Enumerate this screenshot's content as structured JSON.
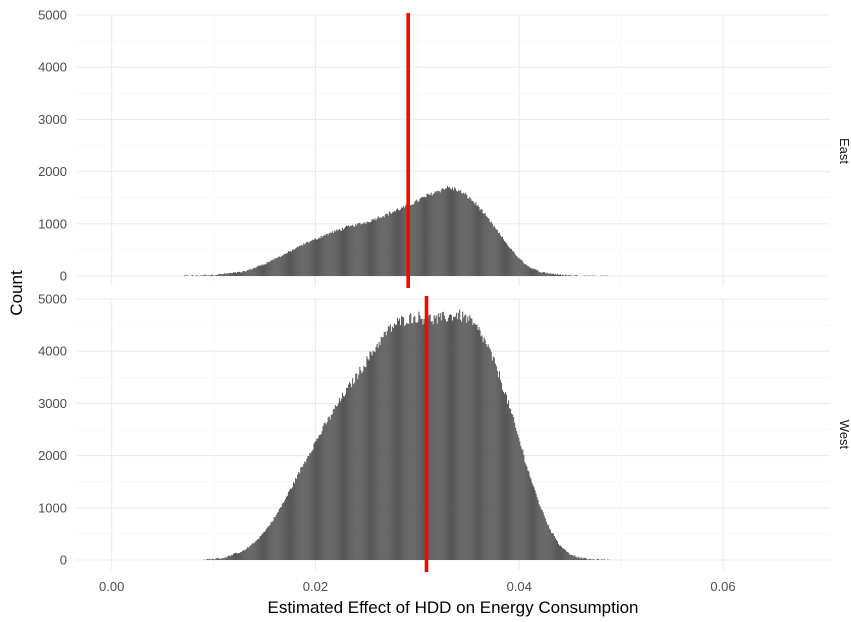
{
  "chart_data": {
    "type": "bar",
    "subtype": "faceted-histogram",
    "xlabel": "Estimated Effect of HDD on Energy Consumption",
    "ylabel": "Count",
    "xlim": [
      -0.0035,
      0.0705
    ],
    "ylim": [
      0,
      5000
    ],
    "x_ticks": [
      0.0,
      0.02,
      0.04,
      0.06
    ],
    "x_tick_labels": [
      "0.00",
      "0.02",
      "0.04",
      "0.06"
    ],
    "y_ticks": [
      0,
      1000,
      2000,
      3000,
      4000,
      5000
    ],
    "y_tick_labels": [
      "0",
      "1000",
      "2000",
      "3000",
      "4000",
      "5000"
    ],
    "grid": true,
    "bar_color": "#595959",
    "vline_color": "#ff0000",
    "facets": [
      {
        "label": "East",
        "reference_line_x": 0.0291,
        "histogram_x": [
          0.007,
          0.01,
          0.013,
          0.015,
          0.017,
          0.019,
          0.021,
          0.023,
          0.025,
          0.026,
          0.027,
          0.028,
          0.029,
          0.03,
          0.031,
          0.032,
          0.033,
          0.034,
          0.035,
          0.036,
          0.037,
          0.038,
          0.039,
          0.04,
          0.041,
          0.042,
          0.044,
          0.046,
          0.049
        ],
        "histogram_counts": [
          0,
          20,
          80,
          230,
          420,
          620,
          790,
          930,
          1030,
          1110,
          1180,
          1260,
          1340,
          1440,
          1540,
          1630,
          1700,
          1640,
          1520,
          1330,
          1080,
          820,
          560,
          330,
          170,
          80,
          20,
          5,
          0
        ]
      },
      {
        "label": "West",
        "reference_line_x": 0.0309,
        "histogram_x": [
          0.009,
          0.011,
          0.013,
          0.014,
          0.015,
          0.016,
          0.017,
          0.018,
          0.019,
          0.02,
          0.021,
          0.022,
          0.023,
          0.024,
          0.025,
          0.026,
          0.027,
          0.028,
          0.029,
          0.03,
          0.031,
          0.032,
          0.033,
          0.034,
          0.035,
          0.036,
          0.037,
          0.038,
          0.039,
          0.04,
          0.041,
          0.042,
          0.043,
          0.044,
          0.045,
          0.046,
          0.047,
          0.049
        ],
        "histogram_counts": [
          0,
          40,
          180,
          330,
          540,
          810,
          1150,
          1520,
          1900,
          2260,
          2600,
          2930,
          3230,
          3510,
          3800,
          4100,
          4370,
          4540,
          4620,
          4650,
          4620,
          4610,
          4660,
          4700,
          4620,
          4400,
          4050,
          3560,
          2960,
          2300,
          1640,
          1060,
          590,
          280,
          110,
          40,
          10,
          0
        ]
      }
    ]
  }
}
